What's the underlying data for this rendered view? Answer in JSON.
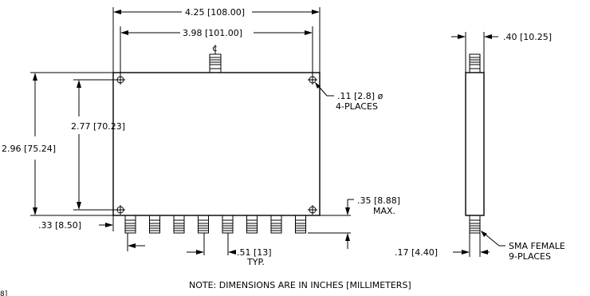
{
  "dimensions": {
    "overall_width": "4.25 [108.00]",
    "hole_spacing_width": "3.98 [101.00]",
    "overall_height": "2.96 [75.24]",
    "hole_spacing_height": "2.77 [70.23]",
    "thickness": ".40 [10.25]",
    "hole_diameter": ".11 [2.8] ø",
    "hole_count": "4-PLACES",
    "connector_height": ".35 [8.88]",
    "connector_height_note": "MAX.",
    "edge_offset": ".33 [8.50]",
    "connector_pitch": ".51 [13]",
    "connector_pitch_note": "TYP.",
    "side_offset": ".17 [4.40]",
    "connector_type": "SMA FEMALE",
    "connector_count": "9-PLACES",
    "centerline": "¢"
  },
  "note": "NOTE: DIMENSIONS ARE IN INCHES [MILLIMETERS]",
  "corner_fragment": "8]"
}
